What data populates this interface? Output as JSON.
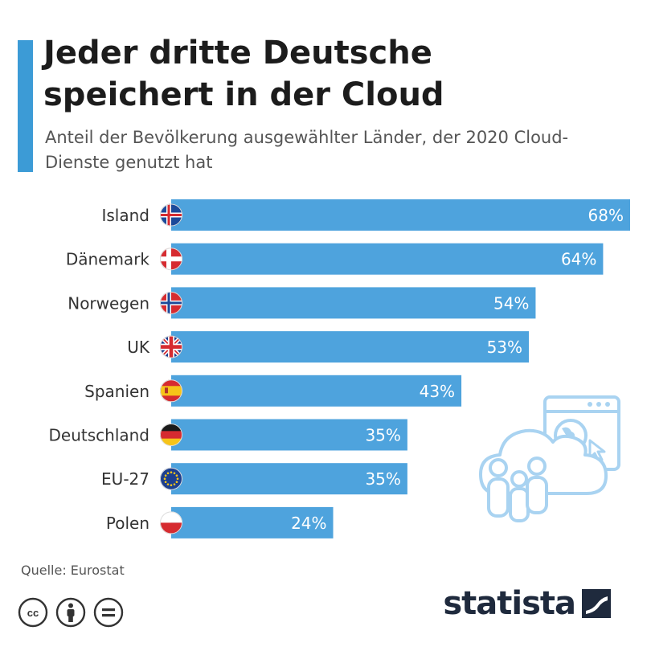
{
  "header": {
    "title": "Jeder dritte Deutsche speichert in der Cloud",
    "subtitle": "Anteil der Bevölkerung ausgewählter Länder, der 2020 Cloud-Dienste genutzt hat"
  },
  "footer": {
    "source": "Quelle: Eurostat",
    "brand": "statista",
    "license_icons": [
      "creative-commons-icon",
      "attribution-icon",
      "no-derivatives-icon"
    ]
  },
  "colors": {
    "accent": "#3c9bd6",
    "bar": "#4ea3dd",
    "bar_label": "#ffffff",
    "text": "#333333",
    "illustration": "#a9d3f1"
  },
  "chart_data": {
    "type": "bar",
    "orientation": "horizontal",
    "categories": [
      "Island",
      "Dänemark",
      "Norwegen",
      "UK",
      "Spanien",
      "Deutschland",
      "EU-27",
      "Polen"
    ],
    "flags": [
      "iceland-flag-icon",
      "denmark-flag-icon",
      "norway-flag-icon",
      "uk-flag-icon",
      "spain-flag-icon",
      "germany-flag-icon",
      "eu-flag-icon",
      "poland-flag-icon"
    ],
    "values": [
      68,
      64,
      54,
      53,
      43,
      35,
      35,
      24
    ],
    "value_labels": [
      "68%",
      "64%",
      "54%",
      "53%",
      "43%",
      "35%",
      "35%",
      "24%"
    ],
    "unit": "%",
    "xlim": [
      0,
      68
    ],
    "grid": false,
    "legend": "none"
  }
}
